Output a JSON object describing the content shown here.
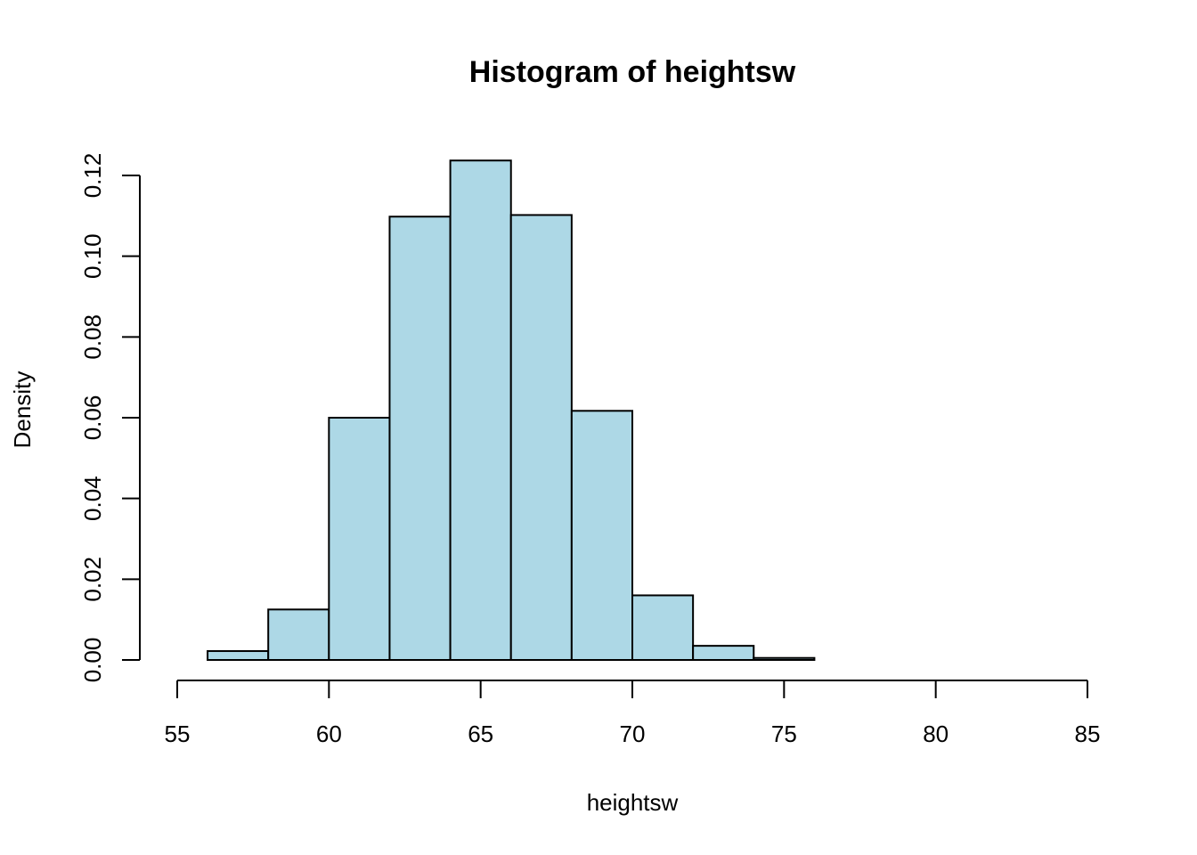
{
  "chart_data": {
    "type": "bar",
    "title": "Histogram of heightsw",
    "xlabel": "heightsw",
    "ylabel": "Density",
    "bins": [
      {
        "start": 56,
        "end": 58,
        "density": 0.0022
      },
      {
        "start": 58,
        "end": 60,
        "density": 0.0125
      },
      {
        "start": 60,
        "end": 62,
        "density": 0.06
      },
      {
        "start": 62,
        "end": 64,
        "density": 0.1098
      },
      {
        "start": 64,
        "end": 66,
        "density": 0.1237
      },
      {
        "start": 66,
        "end": 68,
        "density": 0.1102
      },
      {
        "start": 68,
        "end": 70,
        "density": 0.0617
      },
      {
        "start": 70,
        "end": 72,
        "density": 0.016
      },
      {
        "start": 72,
        "end": 74,
        "density": 0.0035
      },
      {
        "start": 74,
        "end": 76,
        "density": 0.0005
      }
    ],
    "xlim": [
      55,
      85
    ],
    "ylim": [
      0,
      0.12
    ],
    "x_ticks": [
      "55",
      "60",
      "65",
      "70",
      "75",
      "80",
      "85"
    ],
    "y_ticks": [
      "0.00",
      "0.02",
      "0.04",
      "0.06",
      "0.08",
      "0.10",
      "0.12"
    ],
    "bar_color": "#add8e6",
    "border_color": "#000000",
    "grid": false
  }
}
